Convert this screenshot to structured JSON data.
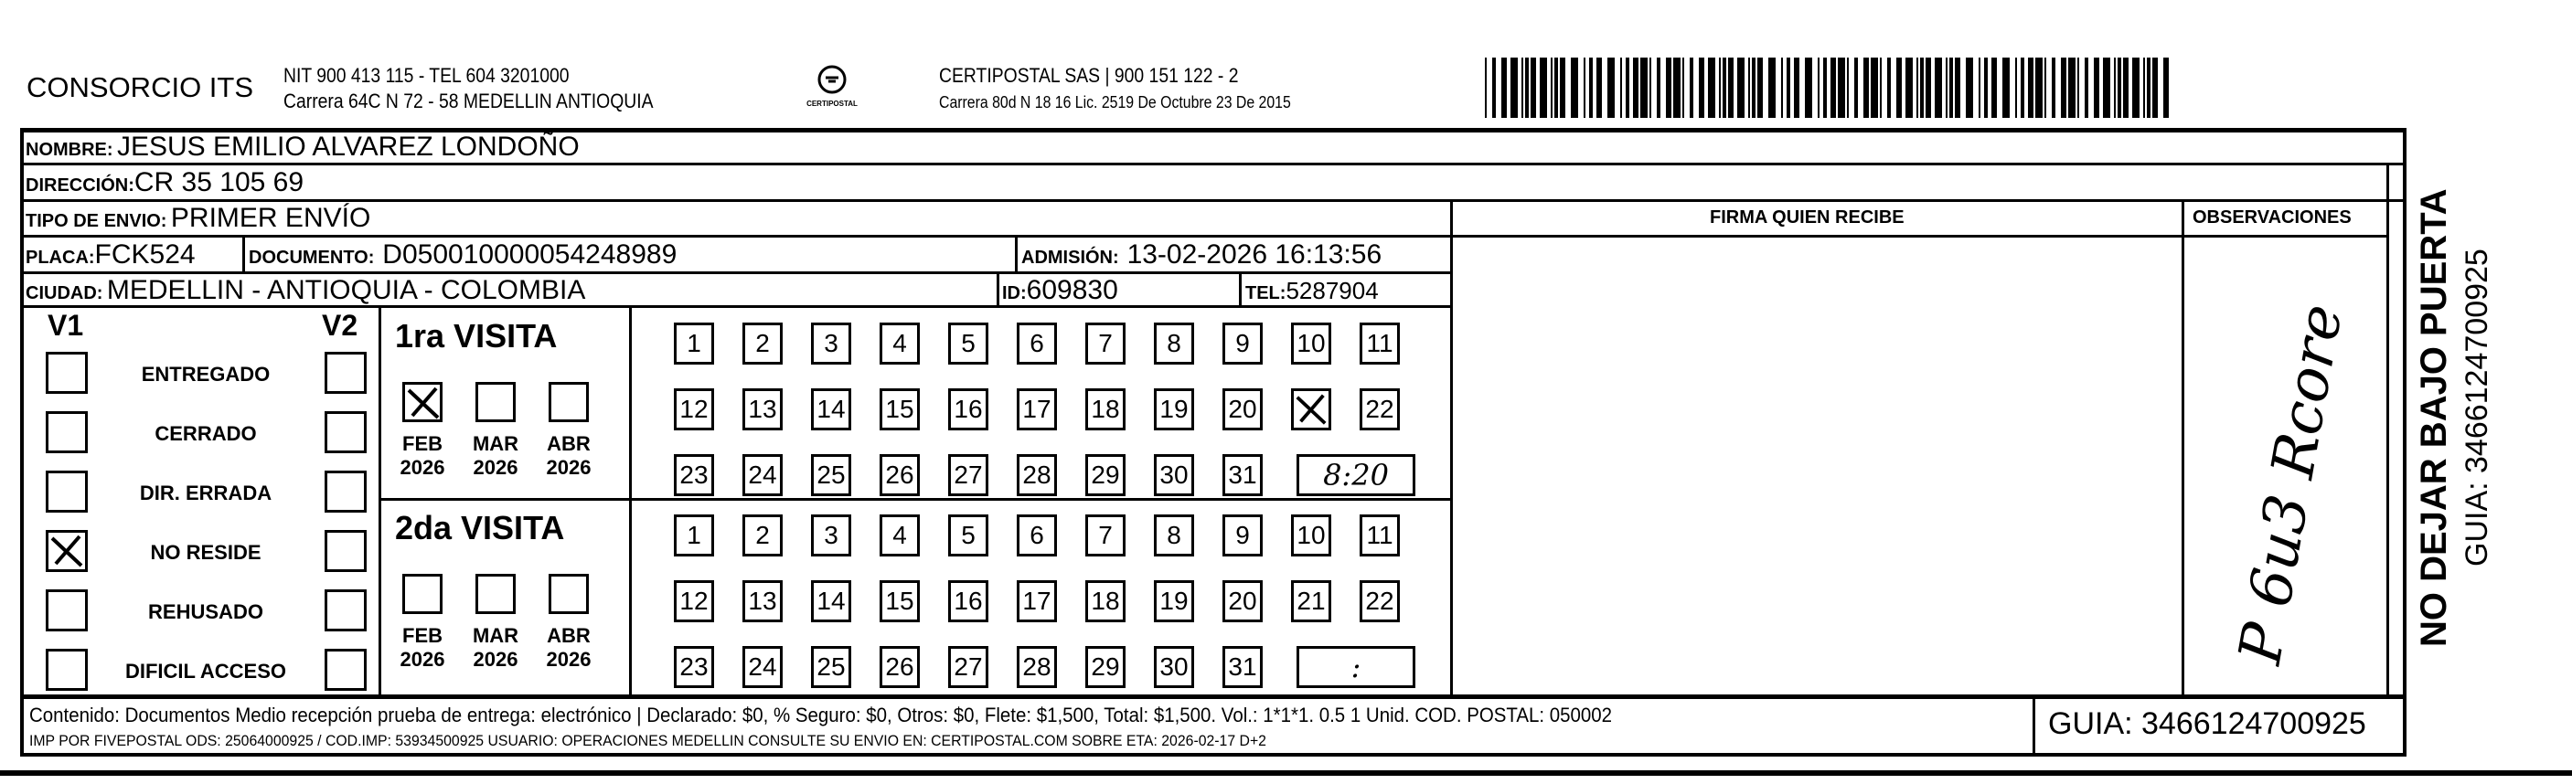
{
  "header": {
    "company": "CONSORCIO ITS",
    "company_line1": "NIT 900 413 115 - TEL 604 3201000",
    "company_line2": "Carrera 64C N 72 - 58 MEDELLIN ANTIOQUIA",
    "logo_text": "CERTIPOSTAL",
    "carrier_line1": "CERTIPOSTAL SAS | 900 151 122 - 2",
    "carrier_line2": "Carrera 80d N 18 16  Lic. 2519 De Octubre 23 De 2015"
  },
  "fields": {
    "nombre_label": "NOMBRE:",
    "nombre": "JESUS EMILIO ALVAREZ LONDOÑO",
    "direccion_label": "DIRECCIÓN:",
    "direccion": "CR 35 105 69",
    "tipo_label": "TIPO DE ENVIO:",
    "tipo": "PRIMER ENVÍO",
    "placa_label": "PLACA:",
    "placa": "FCK524",
    "documento_label": "DOCUMENTO:",
    "documento": "D050010000054248989",
    "admision_label": "ADMISIÓN:",
    "admision": "13-02-2026 16:13:56",
    "ciudad_label": "CIUDAD:",
    "ciudad": "MEDELLIN - ANTIOQUIA - COLOMBIA",
    "id_label": "ID:",
    "id": "609830",
    "tel_label": "TEL:",
    "tel": "5287904"
  },
  "columns": {
    "firma": "FIRMA QUIEN RECIBE",
    "observaciones": "OBSERVACIONES"
  },
  "status": {
    "v1": "V1",
    "v2": "V2",
    "items": [
      {
        "label": "ENTREGADO",
        "v1": false,
        "v2": false
      },
      {
        "label": "CERRADO",
        "v1": false,
        "v2": false
      },
      {
        "label": "DIR. ERRADA",
        "v1": false,
        "v2": false
      },
      {
        "label": "NO RESIDE",
        "v1": true,
        "v2": false
      },
      {
        "label": "REHUSADO",
        "v1": false,
        "v2": false
      },
      {
        "label": "DIFICIL ACCESO",
        "v1": false,
        "v2": false
      }
    ]
  },
  "visits": [
    {
      "title": "1ra VISITA",
      "months": [
        {
          "m": "FEB",
          "y": "2026",
          "checked": true
        },
        {
          "m": "MAR",
          "y": "2026",
          "checked": false
        },
        {
          "m": "ABR",
          "y": "2026",
          "checked": false
        }
      ],
      "marked_day": 21,
      "time": "8:20"
    },
    {
      "title": "2da VISITA",
      "months": [
        {
          "m": "FEB",
          "y": "2026",
          "checked": false
        },
        {
          "m": "MAR",
          "y": "2026",
          "checked": false
        },
        {
          "m": "ABR",
          "y": "2026",
          "checked": false
        }
      ],
      "marked_day": null,
      "time": ":"
    }
  ],
  "observaciones_handwritten": "P 6u3 Rcore",
  "side": {
    "notice": "NO DEJAR BAJO PUERTA",
    "guia": "GUIA: 3466124700925"
  },
  "footer": {
    "line1": "Contenido: Documentos Medio recepción prueba de entrega: electrónico | Declarado: $0, % Seguro: $0, Otros: $0, Flete: $1,500, Total: $1,500. Vol.: 1*1*1. 0.5  1 Unid. COD. POSTAL: 050002",
    "line2": "IMP POR FIVEPOSTAL ODS: 25064000925 / COD.IMP: 53934500925 USUARIO: OPERACIONES MEDELLIN CONSULTE SU ENVIO EN: CERTIPOSTAL.COM SOBRE ETA: 2026-02-17 D+2",
    "guia": "GUIA: 3466124700925"
  }
}
